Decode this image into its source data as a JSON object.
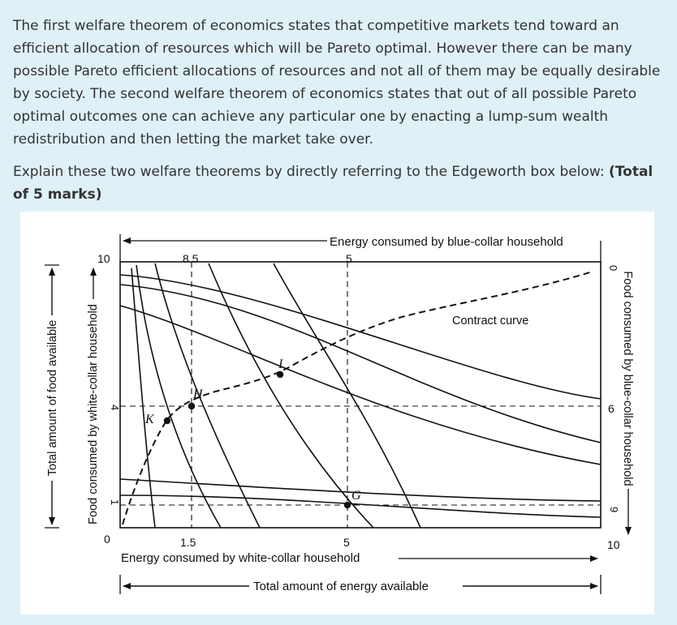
{
  "question": {
    "paragraph": "The first welfare theorem of economics states that competitive markets tend toward an efficient allocation of resources which will be Pareto optimal. However there can be many possible Pareto efficient allocations of resources and not all of them may be equally desirable by society. The second welfare theorem of economics states that out of all possible Pareto optimal outcomes one can achieve any particular one by enacting a lump-sum wealth redistribution and then letting the market take over.",
    "prompt": "Explain these two welfare theorems by directly referring to the Edgeworth box below:",
    "marks": "(Total of 5 marks)"
  },
  "figure": {
    "top_axis_label": "Energy consumed by blue-collar household",
    "bottom_axis_label": "Energy consumed by white-collar household",
    "total_energy_label": "Total amount of energy available",
    "total_food_label": "Total amount of food available",
    "left_axis_label": "Food consumed by white-collar household",
    "right_axis_label": "Food consumed by blue-collar household",
    "contract_curve_label": "Contract curve",
    "left_ticks": {
      "top": "10",
      "mid": "4",
      "low": "1",
      "origin": "0"
    },
    "bottom_ticks": {
      "a": "1.5",
      "b": "5"
    },
    "top_ticks": {
      "a": "8.5",
      "b": "5"
    },
    "right_ticks": {
      "origin": "0",
      "a": "6",
      "b": "9",
      "bottom": "10"
    },
    "points": {
      "K": "K",
      "H": "H",
      "I": "I",
      "G": "G"
    }
  }
}
